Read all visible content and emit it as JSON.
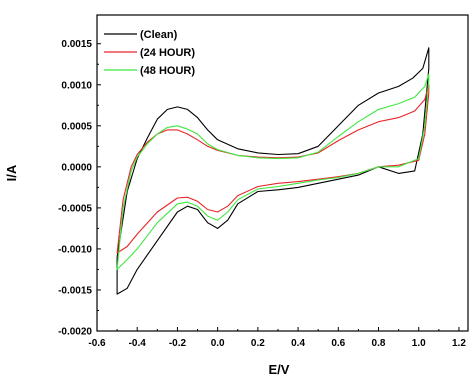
{
  "chart_data": {
    "type": "line",
    "xlabel": "E/V",
    "ylabel": "I/A",
    "xlim": [
      -0.6,
      1.25
    ],
    "ylim": [
      -0.002,
      0.00185
    ],
    "x_ticks": [
      "-0.6",
      "-0.4",
      "-0.2",
      "0.0",
      "0.2",
      "0.4",
      "0.6",
      "0.8",
      "1.0",
      "1.2"
    ],
    "y_ticks": [
      "-0.0020",
      "-0.0015",
      "-0.0010",
      "-0.0005",
      "0.0000",
      "0.0005",
      "0.0010",
      "0.0015"
    ],
    "grid": false,
    "legend": "top-left",
    "series": [
      {
        "name": "(Clean)",
        "color": "#000000",
        "points": [
          [
            -0.5,
            -0.00155
          ],
          [
            -0.5,
            -0.0011
          ],
          [
            -0.45,
            -0.0003
          ],
          [
            -0.4,
            0.0001
          ],
          [
            -0.35,
            0.00035
          ],
          [
            -0.3,
            0.00058
          ],
          [
            -0.25,
            0.0007
          ],
          [
            -0.2,
            0.00073
          ],
          [
            -0.15,
            0.0007
          ],
          [
            -0.1,
            0.0006
          ],
          [
            -0.05,
            0.00045
          ],
          [
            0.0,
            0.00033
          ],
          [
            0.1,
            0.00022
          ],
          [
            0.2,
            0.00017
          ],
          [
            0.3,
            0.00015
          ],
          [
            0.4,
            0.00016
          ],
          [
            0.5,
            0.00025
          ],
          [
            0.6,
            0.0005
          ],
          [
            0.7,
            0.00075
          ],
          [
            0.8,
            0.0009
          ],
          [
            0.9,
            0.00098
          ],
          [
            0.97,
            0.00108
          ],
          [
            1.02,
            0.0012
          ],
          [
            1.05,
            0.00145
          ],
          [
            1.05,
            0.0012
          ],
          [
            1.02,
            0.0004
          ],
          [
            0.98,
            -5e-05
          ],
          [
            0.9,
            -8e-05
          ],
          [
            0.8,
            0.0
          ],
          [
            0.7,
            -0.0001
          ],
          [
            0.6,
            -0.00015
          ],
          [
            0.5,
            -0.0002
          ],
          [
            0.4,
            -0.00025
          ],
          [
            0.3,
            -0.00028
          ],
          [
            0.2,
            -0.0003
          ],
          [
            0.1,
            -0.00045
          ],
          [
            0.05,
            -0.00065
          ],
          [
            0.0,
            -0.00075
          ],
          [
            -0.05,
            -0.00068
          ],
          [
            -0.1,
            -0.00052
          ],
          [
            -0.15,
            -0.00048
          ],
          [
            -0.2,
            -0.00055
          ],
          [
            -0.3,
            -0.0009
          ],
          [
            -0.4,
            -0.00125
          ],
          [
            -0.45,
            -0.00148
          ]
        ]
      },
      {
        "name": "(24 HOUR)",
        "color": "#e8252a",
        "points": [
          [
            -0.5,
            -0.00105
          ],
          [
            -0.47,
            -0.0004
          ],
          [
            -0.43,
            0.0
          ],
          [
            -0.4,
            0.00015
          ],
          [
            -0.35,
            0.0003
          ],
          [
            -0.3,
            0.0004
          ],
          [
            -0.25,
            0.00045
          ],
          [
            -0.2,
            0.00045
          ],
          [
            -0.15,
            0.0004
          ],
          [
            -0.1,
            0.00033
          ],
          [
            -0.05,
            0.00025
          ],
          [
            0.0,
            0.0002
          ],
          [
            0.1,
            0.00014
          ],
          [
            0.2,
            0.00012
          ],
          [
            0.3,
            0.00011
          ],
          [
            0.4,
            0.00012
          ],
          [
            0.5,
            0.00017
          ],
          [
            0.6,
            0.00032
          ],
          [
            0.7,
            0.00045
          ],
          [
            0.8,
            0.00055
          ],
          [
            0.9,
            0.0006
          ],
          [
            0.98,
            0.00068
          ],
          [
            1.03,
            0.00082
          ],
          [
            1.05,
            0.001
          ],
          [
            1.05,
            0.0009
          ],
          [
            1.03,
            0.0004
          ],
          [
            1.0,
            8e-05
          ],
          [
            0.9,
            2e-05
          ],
          [
            0.8,
            0.0
          ],
          [
            0.7,
            -8e-05
          ],
          [
            0.6,
            -0.00012
          ],
          [
            0.5,
            -0.00015
          ],
          [
            0.4,
            -0.00018
          ],
          [
            0.3,
            -0.0002
          ],
          [
            0.2,
            -0.00024
          ],
          [
            0.1,
            -0.00035
          ],
          [
            0.05,
            -0.00048
          ],
          [
            0.0,
            -0.00055
          ],
          [
            -0.05,
            -0.00052
          ],
          [
            -0.1,
            -0.00042
          ],
          [
            -0.15,
            -0.00037
          ],
          [
            -0.2,
            -0.00038
          ],
          [
            -0.3,
            -0.00055
          ],
          [
            -0.4,
            -0.00082
          ],
          [
            -0.45,
            -0.00097
          ]
        ]
      },
      {
        "name": "(48 HOUR)",
        "color": "#3ee83e",
        "points": [
          [
            -0.5,
            -0.00125
          ],
          [
            -0.47,
            -0.0005
          ],
          [
            -0.43,
            -5e-05
          ],
          [
            -0.4,
            0.00012
          ],
          [
            -0.35,
            0.00028
          ],
          [
            -0.3,
            0.0004
          ],
          [
            -0.25,
            0.00048
          ],
          [
            -0.2,
            0.0005
          ],
          [
            -0.15,
            0.00046
          ],
          [
            -0.1,
            0.0004
          ],
          [
            -0.05,
            0.00028
          ],
          [
            0.0,
            0.00021
          ],
          [
            0.1,
            0.00014
          ],
          [
            0.2,
            0.00011
          ],
          [
            0.3,
            0.0001
          ],
          [
            0.4,
            0.00011
          ],
          [
            0.5,
            0.00018
          ],
          [
            0.6,
            0.00037
          ],
          [
            0.7,
            0.00055
          ],
          [
            0.8,
            0.0007
          ],
          [
            0.9,
            0.00077
          ],
          [
            0.98,
            0.00085
          ],
          [
            1.03,
            0.00098
          ],
          [
            1.05,
            0.00113
          ],
          [
            1.05,
            0.00105
          ],
          [
            1.03,
            0.0005
          ],
          [
            1.0,
            0.0001
          ],
          [
            0.9,
            0.0
          ],
          [
            0.8,
            0.0
          ],
          [
            0.7,
            -8e-05
          ],
          [
            0.6,
            -0.00013
          ],
          [
            0.5,
            -0.00016
          ],
          [
            0.4,
            -0.0002
          ],
          [
            0.3,
            -0.00024
          ],
          [
            0.2,
            -0.00027
          ],
          [
            0.1,
            -0.0004
          ],
          [
            0.05,
            -0.00055
          ],
          [
            0.0,
            -0.00065
          ],
          [
            -0.05,
            -0.0006
          ],
          [
            -0.1,
            -0.00048
          ],
          [
            -0.15,
            -0.00043
          ],
          [
            -0.2,
            -0.00045
          ],
          [
            -0.3,
            -0.00068
          ],
          [
            -0.4,
            -0.001
          ],
          [
            -0.45,
            -0.00113
          ]
        ]
      }
    ]
  }
}
